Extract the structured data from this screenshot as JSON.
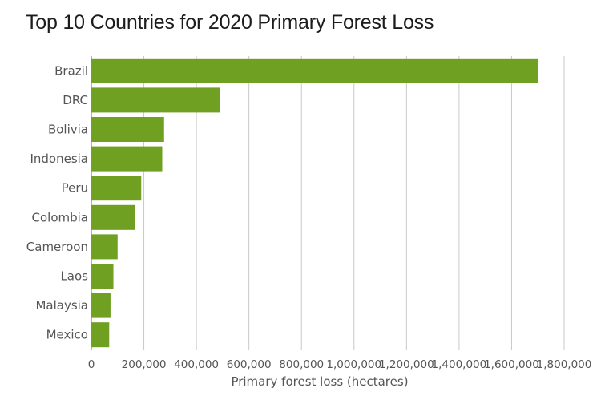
{
  "chart_data": {
    "type": "bar",
    "orientation": "horizontal",
    "title": "Top 10 Countries for 2020 Primary Forest Loss",
    "xlabel": "Primary forest loss (hectares)",
    "ylabel": "",
    "categories": [
      "Brazil",
      "DRC",
      "Bolivia",
      "Indonesia",
      "Peru",
      "Colombia",
      "Cameroon",
      "Laos",
      "Malaysia",
      "Mexico"
    ],
    "values": [
      1700000,
      490000,
      277000,
      270000,
      190000,
      166000,
      100000,
      84000,
      73000,
      68000
    ],
    "xlim": [
      0,
      1800000
    ],
    "xticks": [
      0,
      200000,
      400000,
      600000,
      800000,
      1000000,
      1200000,
      1400000,
      1600000,
      1800000
    ],
    "xtick_labels": [
      "0",
      "200,000",
      "400,000",
      "600,000",
      "800,000",
      "1,000,000",
      "1,200,000",
      "1,400,000",
      "1,600,000",
      "1,800,000"
    ],
    "grid": true,
    "legend": "none",
    "colors": {
      "bar": "#6fa022",
      "gridline": "#c8c8c8",
      "axis": "#8a8a8a",
      "text": "#555555",
      "title": "#1c1c1c"
    }
  }
}
